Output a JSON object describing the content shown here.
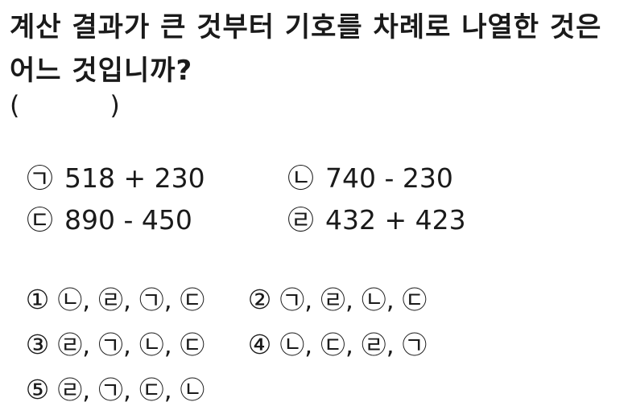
{
  "question": {
    "line1": "계산 결과가 큰 것부터 기호를 차례로 나열한 것은",
    "line2": "어느 것입니까?",
    "answer_blank": "(           )"
  },
  "items": [
    {
      "mark": "㉠",
      "expr": "518 + 230"
    },
    {
      "mark": "㉡",
      "expr": "740 - 230"
    },
    {
      "mark": "㉢",
      "expr": "890 - 450"
    },
    {
      "mark": "㉣",
      "expr": "432 + 423"
    }
  ],
  "choices": [
    {
      "num": "①",
      "text": "㉡, ㉣, ㉠, ㉢"
    },
    {
      "num": "②",
      "text": "㉠, ㉣, ㉡, ㉢"
    },
    {
      "num": "③",
      "text": "㉣, ㉠, ㉡, ㉢"
    },
    {
      "num": "④",
      "text": "㉡, ㉢, ㉣, ㉠"
    },
    {
      "num": "⑤",
      "text": "㉣, ㉠, ㉢, ㉡"
    }
  ]
}
